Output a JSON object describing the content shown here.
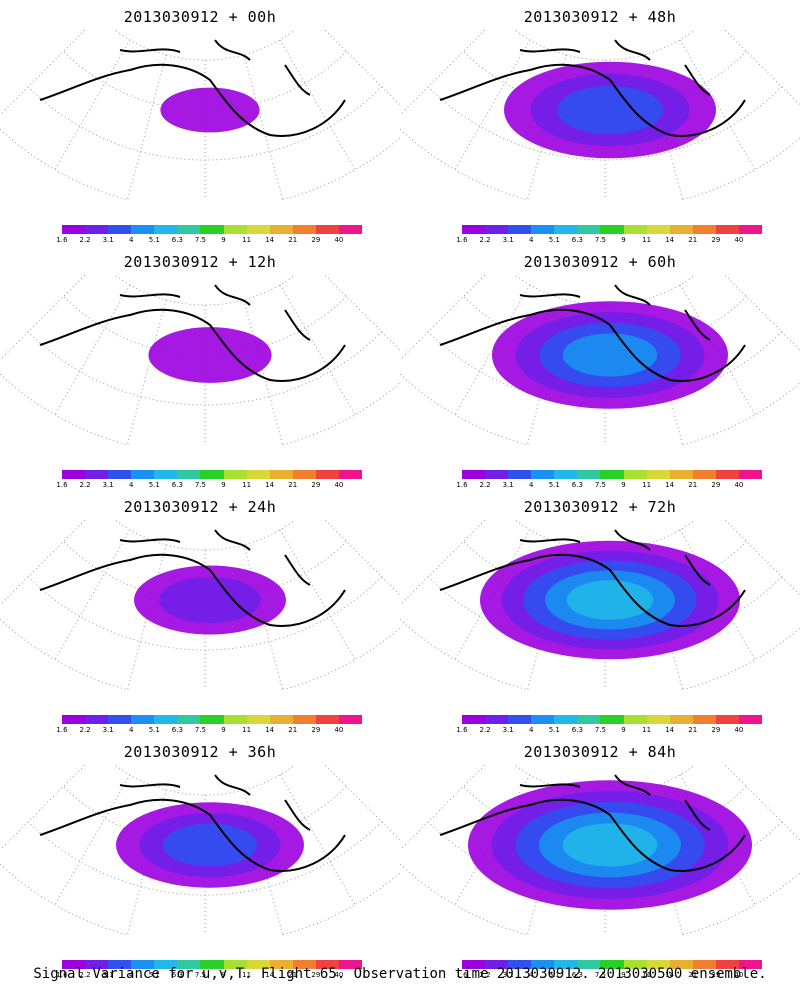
{
  "panels": [
    {
      "title": "2013030912 + 00h",
      "lead_h": 0,
      "level": 0.08
    },
    {
      "title": "2013030912 + 48h",
      "lead_h": 48,
      "level": 0.55
    },
    {
      "title": "2013030912 + 12h",
      "lead_h": 12,
      "level": 0.18
    },
    {
      "title": "2013030912 + 60h",
      "lead_h": 60,
      "level": 0.65
    },
    {
      "title": "2013030912 + 24h",
      "lead_h": 24,
      "level": 0.3
    },
    {
      "title": "2013030912 + 72h",
      "lead_h": 72,
      "level": 0.75
    },
    {
      "title": "2013030912 + 36h",
      "lead_h": 36,
      "level": 0.45
    },
    {
      "title": "2013030912 + 84h",
      "lead_h": 84,
      "level": 0.85
    }
  ],
  "colorbar": {
    "labels": [
      "1.6",
      "2.2",
      "3.1",
      "4",
      "5.1",
      "6.3",
      "7.5",
      "9",
      "11",
      "14",
      "21",
      "29",
      "40"
    ],
    "colors": [
      "#9b00e0",
      "#6f1fe8",
      "#3050f0",
      "#1a90f0",
      "#20b8e8",
      "#30c8a0",
      "#28d028",
      "#a8e030",
      "#d8d838",
      "#e8b030",
      "#f08030",
      "#f04040",
      "#f0148c"
    ]
  },
  "footer": "Signal Variance for u,v,T. Flight 65. Observation time 2013030912. 2013030500 ensemble."
}
